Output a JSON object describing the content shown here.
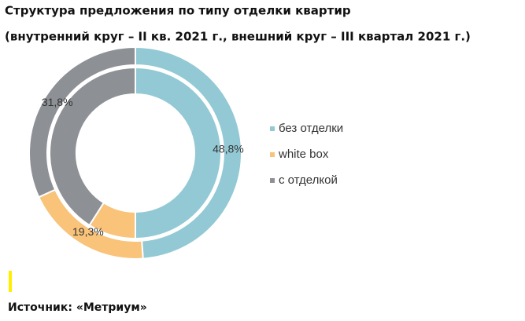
{
  "chart_data": {
    "type": "donut",
    "title": "Структура предложения по типу отделки квартир",
    "subtitle": "(внутренний круг – II кв. 2021 г., внешний круг – III квартал 2021 г.)",
    "categories": [
      "без отделки",
      "white box",
      "с отделкой"
    ],
    "colors": [
      "#92c9d4",
      "#f9c37a",
      "#8d9196"
    ],
    "series": [
      {
        "values": [
          50,
          9,
          41
        ]
      },
      {
        "values": [
          48.8,
          19.3,
          31.8
        ],
        "value_labels": [
          "48,8%",
          "19,3%",
          "31,8%"
        ]
      }
    ],
    "legend": "right",
    "source": "Источник: «Метриум»"
  }
}
